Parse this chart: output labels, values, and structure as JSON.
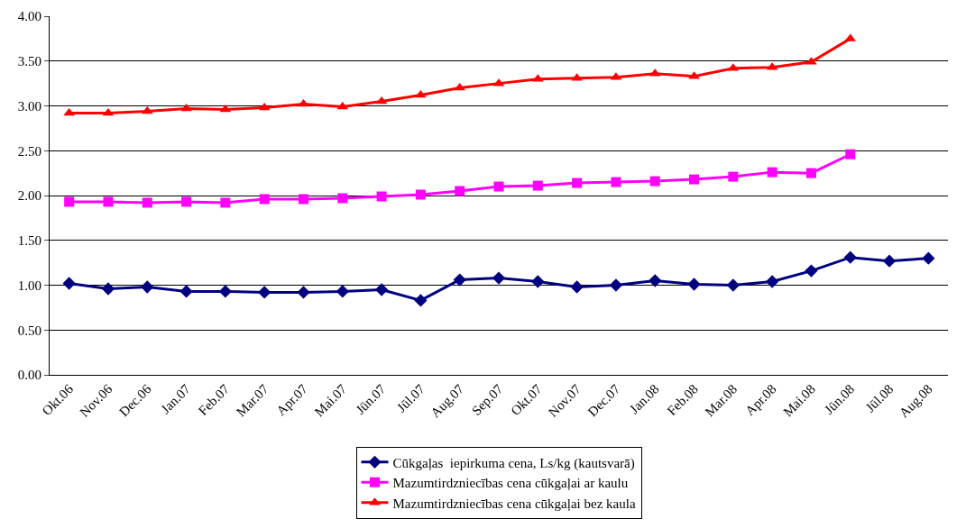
{
  "chart_data": {
    "type": "line",
    "categories": [
      "Okt.06",
      "Nov.06",
      "Dec.06",
      "Jan.07",
      "Feb.07",
      "Mar.07",
      "Apr.07",
      "Mai.07",
      "Jūn.07",
      "Jūl.07",
      "Aug.07",
      "Sep.07",
      "Okt.07",
      "Nov.07",
      "Dec.07",
      "Jan.08",
      "Feb.08",
      "Mar.08",
      "Apr.08",
      "Mai.08",
      "Jūn.08",
      "Jūl.08",
      "Aug.08"
    ],
    "series": [
      {
        "name": "Cūkgaļas  iepirkuma cena, Ls/kg (kautsvarā)",
        "color": "#000080",
        "marker": "diamond",
        "values": [
          1.02,
          0.96,
          0.98,
          0.93,
          0.93,
          0.92,
          0.92,
          0.93,
          0.95,
          0.83,
          1.06,
          1.08,
          1.04,
          0.98,
          1.0,
          1.05,
          1.01,
          1.0,
          1.04,
          1.16,
          1.31,
          1.27,
          1.3
        ]
      },
      {
        "name": "Mazumtirdzniecības cena cūkgaļai ar kaulu",
        "color": "#ff00ff",
        "marker": "square",
        "values": [
          1.93,
          1.93,
          1.92,
          1.93,
          1.92,
          1.96,
          1.96,
          1.97,
          1.99,
          2.01,
          2.05,
          2.1,
          2.11,
          2.14,
          2.15,
          2.16,
          2.18,
          2.21,
          2.26,
          2.25,
          2.46,
          null,
          null
        ]
      },
      {
        "name": "Mazumtirdzniecības cena cūkgaļai bez kaula",
        "color": "#ff0000",
        "marker": "triangle",
        "values": [
          2.92,
          2.92,
          2.94,
          2.97,
          2.96,
          2.98,
          3.02,
          2.99,
          3.05,
          3.12,
          3.2,
          3.25,
          3.3,
          3.31,
          3.32,
          3.36,
          3.33,
          3.42,
          3.43,
          3.49,
          3.75,
          null,
          null
        ]
      }
    ],
    "ylim": [
      0,
      4
    ],
    "yticks": [
      {
        "value": 0,
        "label": "0.00"
      },
      {
        "value": 0.5,
        "label": "0.50"
      },
      {
        "value": 1,
        "label": "1.00"
      },
      {
        "value": 1.5,
        "label": "1.50"
      },
      {
        "value": 2,
        "label": "2.00"
      },
      {
        "value": 2.5,
        "label": "2.50"
      },
      {
        "value": 3,
        "label": "3.00"
      },
      {
        "value": 3.5,
        "label": "3.50"
      },
      {
        "value": 4,
        "label": "4.00"
      }
    ],
    "grid": "y",
    "legend": "bottom",
    "line_style": "solid"
  }
}
